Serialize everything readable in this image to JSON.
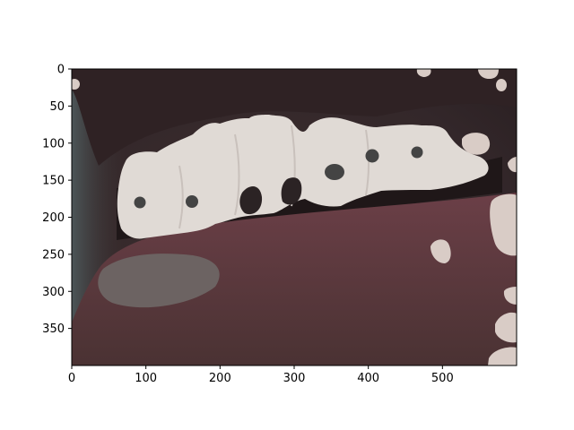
{
  "figure": {
    "image_description_name": "mouth-closeup-segmentation-overlay",
    "x_ticks": [
      {
        "value": 0,
        "label": "0"
      },
      {
        "value": 100,
        "label": "100"
      },
      {
        "value": 200,
        "label": "200"
      },
      {
        "value": 300,
        "label": "300"
      },
      {
        "value": 400,
        "label": "400"
      },
      {
        "value": 500,
        "label": "500"
      }
    ],
    "y_ticks": [
      {
        "value": 0,
        "label": "0"
      },
      {
        "value": 50,
        "label": "50"
      },
      {
        "value": 100,
        "label": "100"
      },
      {
        "value": 150,
        "label": "150"
      },
      {
        "value": 200,
        "label": "200"
      },
      {
        "value": 250,
        "label": "250"
      },
      {
        "value": 300,
        "label": "300"
      },
      {
        "value": 350,
        "label": "350"
      }
    ],
    "x_range": [
      0,
      600
    ],
    "y_range": [
      0,
      400
    ],
    "y_inverted": true,
    "colors": {
      "background_skin": "#3a2c2b",
      "lip": "#5b3a3e",
      "lower_lip_highlight": "#6e6463",
      "teeth_mask": "#e0dad5",
      "mask_patch": "#d9ccc6",
      "dark_spot": "#444444"
    }
  }
}
